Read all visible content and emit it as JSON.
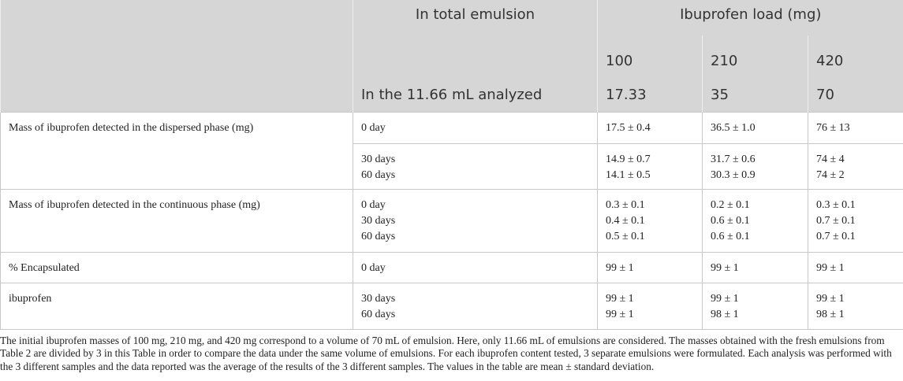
{
  "header": {
    "total": "In total emulsion",
    "load": "Ibuprofen load (mg)",
    "loads": [
      "100",
      "210",
      "420"
    ],
    "analyzed": "In the 11.66 mL analyzed",
    "analyzed_values": [
      "17.33",
      "35",
      "70"
    ]
  },
  "groups": [
    {
      "label": "Mass of ibuprofen detected in the dispersed phase (mg)",
      "rows": [
        {
          "time": [
            "0 day"
          ],
          "values": [
            [
              "17.5 ± 0.4"
            ],
            [
              "36.5 ± 1.0"
            ],
            [
              "76 ± 13"
            ]
          ]
        },
        {
          "time": [
            "30 days",
            "60 days"
          ],
          "values": [
            [
              "14.9 ± 0.7",
              "14.1 ± 0.5"
            ],
            [
              "31.7 ± 0.6",
              "30.3 ± 0.9"
            ],
            [
              "74 ± 4",
              "74 ± 2"
            ]
          ]
        }
      ]
    },
    {
      "label": "Mass of ibuprofen detected in the continuous phase (mg)",
      "rows": [
        {
          "time": [
            "0 day",
            "30 days",
            "60 days"
          ],
          "values": [
            [
              "0.3 ± 0.1",
              "0.4 ± 0.1",
              "0.5 ± 0.1"
            ],
            [
              "0.2 ± 0.1",
              "0.6 ± 0.1",
              "0.6 ± 0.1"
            ],
            [
              "0.3 ± 0.1",
              "0.7 ± 0.1",
              "0.7 ± 0.1"
            ]
          ]
        }
      ]
    },
    {
      "label": "% Encapsulated",
      "rows": [
        {
          "time": [
            "0 day"
          ],
          "values": [
            [
              "99 ± 1"
            ],
            [
              "99 ± 1"
            ],
            [
              "99 ± 1"
            ]
          ]
        }
      ]
    },
    {
      "label": "ibuprofen",
      "rows": [
        {
          "time": [
            "30 days",
            "60 days"
          ],
          "values": [
            [
              "99 ± 1",
              "99 ± 1"
            ],
            [
              "99 ± 1",
              "98 ± 1"
            ],
            [
              "99 ± 1",
              "98 ± 1"
            ]
          ]
        }
      ]
    }
  ],
  "footnote": "The initial ibuprofen masses of 100 mg, 210 mg, and 420 mg correspond to a volume of 70 mL of emulsion. Here, only 11.66 mL of emulsions are considered. The masses obtained with the fresh emulsions from Table 2 are divided by 3 in this Table in order to compare the data under the same volume of emulsions. For each ibuprofen content tested, 3 separate emulsions were formulated. Each analysis was performed with the 3 different samples and the data reported was the average of the results of the 3 different samples. The values in the table are mean ± standard deviation."
}
